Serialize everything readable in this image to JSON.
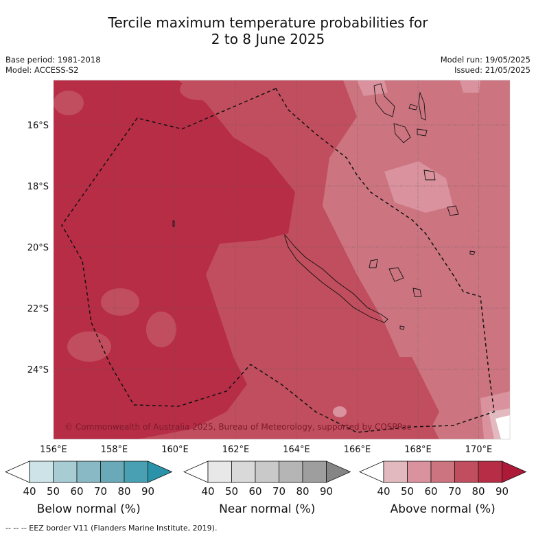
{
  "title_line1": "Tercile maximum temperature probabilities for",
  "title_line2": "2 to 8 June 2025",
  "meta_left": [
    "Base period: 1981-2018",
    "Model: ACCESS-S2"
  ],
  "meta_right": [
    "Model run: 19/05/2025",
    "Issued: 21/05/2025"
  ],
  "map": {
    "lon_labels": [
      "156°E",
      "158°E",
      "160°E",
      "162°E",
      "164°E",
      "166°E",
      "168°E",
      "170°E"
    ],
    "lat_labels": [
      "16°S",
      "18°S",
      "20°S",
      "22°S",
      "24°S"
    ],
    "copyright": "© Commonwealth of Australia 2025, Bureau of Meteorology, supported by COSPPac"
  },
  "colorbars": [
    {
      "label": "Below normal (%)",
      "ticks": [
        "40",
        "50",
        "60",
        "70",
        "80",
        "90"
      ],
      "colors": [
        "#ffffff",
        "#cde3e8",
        "#a8ccd4",
        "#88b9c4",
        "#69a9b8",
        "#48a0b2",
        "#2a93a9"
      ]
    },
    {
      "label": "Near normal (%)",
      "ticks": [
        "40",
        "50",
        "60",
        "70",
        "80",
        "90"
      ],
      "colors": [
        "#ffffff",
        "#e8e8e8",
        "#d9d9d9",
        "#c9c9c9",
        "#b5b5b5",
        "#9e9e9e",
        "#858585"
      ]
    },
    {
      "label": "Above normal (%)",
      "ticks": [
        "40",
        "50",
        "60",
        "70",
        "80",
        "90"
      ],
      "colors": [
        "#ffffff",
        "#e3b9c0",
        "#d9929e",
        "#cc7581",
        "#c14e5e",
        "#b72d46",
        "#ad1a38"
      ]
    }
  ],
  "footer": "--  --  -- EEZ border V11 (Flanders Marine Institute, 2019)."
}
